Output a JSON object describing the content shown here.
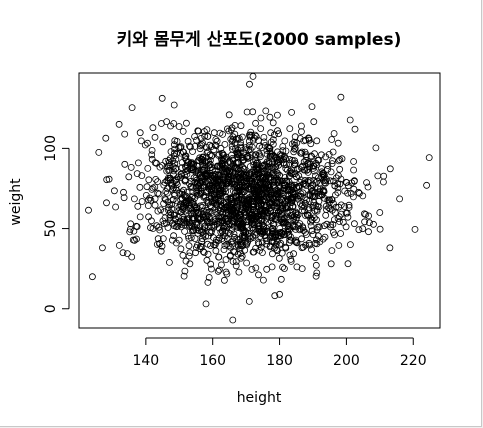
{
  "chart_data": {
    "type": "scatter",
    "title": "키와 몸무게 산포도(2000 samples)",
    "xlabel": "height",
    "ylabel": "weight",
    "xlim": [
      120,
      228
    ],
    "ylim": [
      -12,
      147
    ],
    "x_ticks": [
      140,
      160,
      180,
      200,
      220
    ],
    "y_ticks": [
      0,
      50,
      100
    ],
    "x_tick_labels": [
      "140",
      "160",
      "180",
      "200",
      "220"
    ],
    "y_tick_labels": [
      "0",
      "50",
      "100"
    ],
    "grid": false,
    "legend": "none",
    "marker": "open-circle",
    "marker_color": "#000000",
    "n_samples": 2000,
    "distribution": {
      "height_mean": 170,
      "height_sd": 15,
      "weight_mean": 70,
      "weight_sd": 20
    },
    "notable_points": [
      {
        "x": 124,
        "y": 20
      },
      {
        "x": 224,
        "y": 77
      },
      {
        "x": 166,
        "y": -7
      },
      {
        "x": 171,
        "y": 140
      },
      {
        "x": 158,
        "y": 3
      },
      {
        "x": 210,
        "y": 60
      },
      {
        "x": 132,
        "y": 115
      },
      {
        "x": 127,
        "y": 38
      },
      {
        "x": 213,
        "y": 38
      },
      {
        "x": 180,
        "y": 9
      }
    ]
  }
}
